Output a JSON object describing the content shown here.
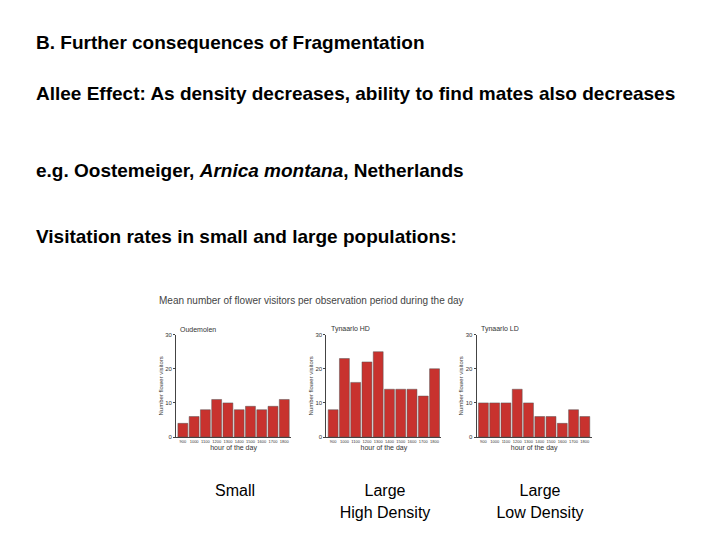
{
  "slide": {
    "heading": "B. Further consequences of Fragmentation",
    "allee": "Allee Effect: As density decreases, ability to find mates also decreases",
    "example": {
      "before": "e.g. Oostemeiger, ",
      "species": "Arnica montana",
      "after": ", Netherlands"
    },
    "visitation": "Visitation rates in small and large populations:",
    "figure_title": "Mean number of flower visitors per observation period during the day",
    "captions": [
      "Small",
      "Large\nHigh Density",
      "Large\nLow Density"
    ]
  },
  "chart_data": [
    {
      "type": "bar",
      "title": "Oudemolen",
      "categories": [
        "900",
        "1000",
        "1100",
        "1200",
        "1300",
        "1400",
        "1500",
        "1600",
        "1700",
        "1800"
      ],
      "values": [
        4,
        6,
        8,
        11,
        10,
        8,
        9,
        8,
        9,
        11
      ],
      "color": "#c8322e",
      "xlabel": "hour of the day",
      "ylabel": "Number flower visitors",
      "ylim": [
        0,
        30
      ],
      "yticks": [
        0,
        10,
        20,
        30
      ]
    },
    {
      "type": "bar",
      "title": "Tynaarlo HD",
      "categories": [
        "900",
        "1000",
        "1100",
        "1200",
        "1300",
        "1400",
        "1500",
        "1600",
        "1700",
        "1800"
      ],
      "values": [
        8,
        23,
        16,
        22,
        25,
        14,
        14,
        14,
        12,
        20
      ],
      "color": "#c8322e",
      "xlabel": "hour of the day",
      "ylabel": "Number flower visitors",
      "ylim": [
        0,
        30
      ],
      "yticks": [
        0,
        10,
        20,
        30
      ]
    },
    {
      "type": "bar",
      "title": "Tynaarlo LD",
      "categories": [
        "900",
        "1000",
        "1100",
        "1200",
        "1300",
        "1400",
        "1500",
        "1600",
        "1700",
        "1800"
      ],
      "values": [
        10,
        10,
        10,
        14,
        10,
        6,
        6,
        4,
        8,
        6
      ],
      "color": "#c8322e",
      "xlabel": "hour of the day",
      "ylabel": "Number flower visitors",
      "ylim": [
        0,
        30
      ],
      "yticks": [
        0,
        10,
        20,
        30
      ]
    }
  ]
}
